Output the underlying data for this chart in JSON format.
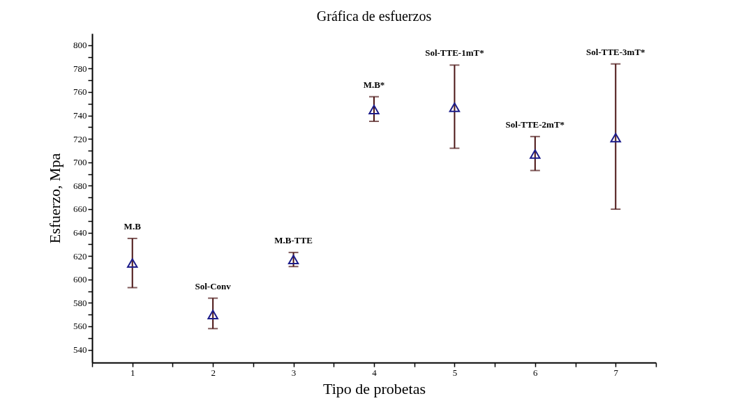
{
  "chart_data": {
    "type": "scatter",
    "title": "Gráfica de esfuerzos",
    "xlabel": "Tipo de probetas",
    "ylabel": "Esfuerzo, Mpa",
    "x": [
      1,
      2,
      3,
      4,
      5,
      6,
      7
    ],
    "series": [
      {
        "color": "#1c1c8a",
        "values": [
          614,
          570,
          617,
          745,
          747,
          707,
          721
        ],
        "errors": [
          [
            593,
            635
          ],
          [
            558,
            584
          ],
          [
            611,
            623
          ],
          [
            735,
            756
          ],
          [
            712,
            783
          ],
          [
            693,
            722
          ],
          [
            660,
            784
          ]
        ]
      }
    ],
    "marker": "triangle",
    "xlim": [
      0.5,
      7.5
    ],
    "ylim": [
      529,
      810
    ],
    "xticks": [
      {
        "value": 0.5,
        "label": null
      },
      1,
      {
        "value": 1.5,
        "label": null
      },
      2,
      {
        "value": 2.5,
        "label": null
      },
      3,
      {
        "value": 3.5,
        "label": null
      },
      4,
      {
        "value": 4.5,
        "label": null
      },
      5,
      {
        "value": 5.5,
        "label": null
      },
      6,
      {
        "value": 6.5,
        "label": null
      },
      7,
      {
        "value": 7.5,
        "label": null
      }
    ],
    "yticks": [
      540,
      {
        "value": 550,
        "label": null
      },
      560,
      {
        "value": 570,
        "label": null
      },
      580,
      {
        "value": 590,
        "label": null
      },
      600,
      {
        "value": 610,
        "label": null
      },
      620,
      {
        "value": 630,
        "label": null
      },
      640,
      {
        "value": 650,
        "label": null
      },
      660,
      {
        "value": 670,
        "label": null
      },
      680,
      {
        "value": 690,
        "label": null
      },
      700,
      {
        "value": 710,
        "label": null
      },
      720,
      {
        "value": 730,
        "label": null
      },
      740,
      {
        "value": 750,
        "label": null
      },
      760,
      {
        "value": 770,
        "label": null
      },
      780,
      {
        "value": 790,
        "label": null
      },
      800
    ],
    "annotations": [
      {
        "text": "M.B",
        "x": 1,
        "y": 635
      },
      {
        "text": "Sol-Conv",
        "x": 2,
        "y": 584
      },
      {
        "text": "M.B-TTE",
        "x": 3,
        "y": 623
      },
      {
        "text": "M.B*",
        "x": 4,
        "y": 756
      },
      {
        "text": "Sol-TTE-1mT*",
        "x": 5,
        "y": 783
      },
      {
        "text": "Sol-TTE-2mT*",
        "x": 6,
        "y": 722
      },
      {
        "text": "Sol-TTE-3mT*",
        "x": 7,
        "y": 784
      }
    ]
  }
}
